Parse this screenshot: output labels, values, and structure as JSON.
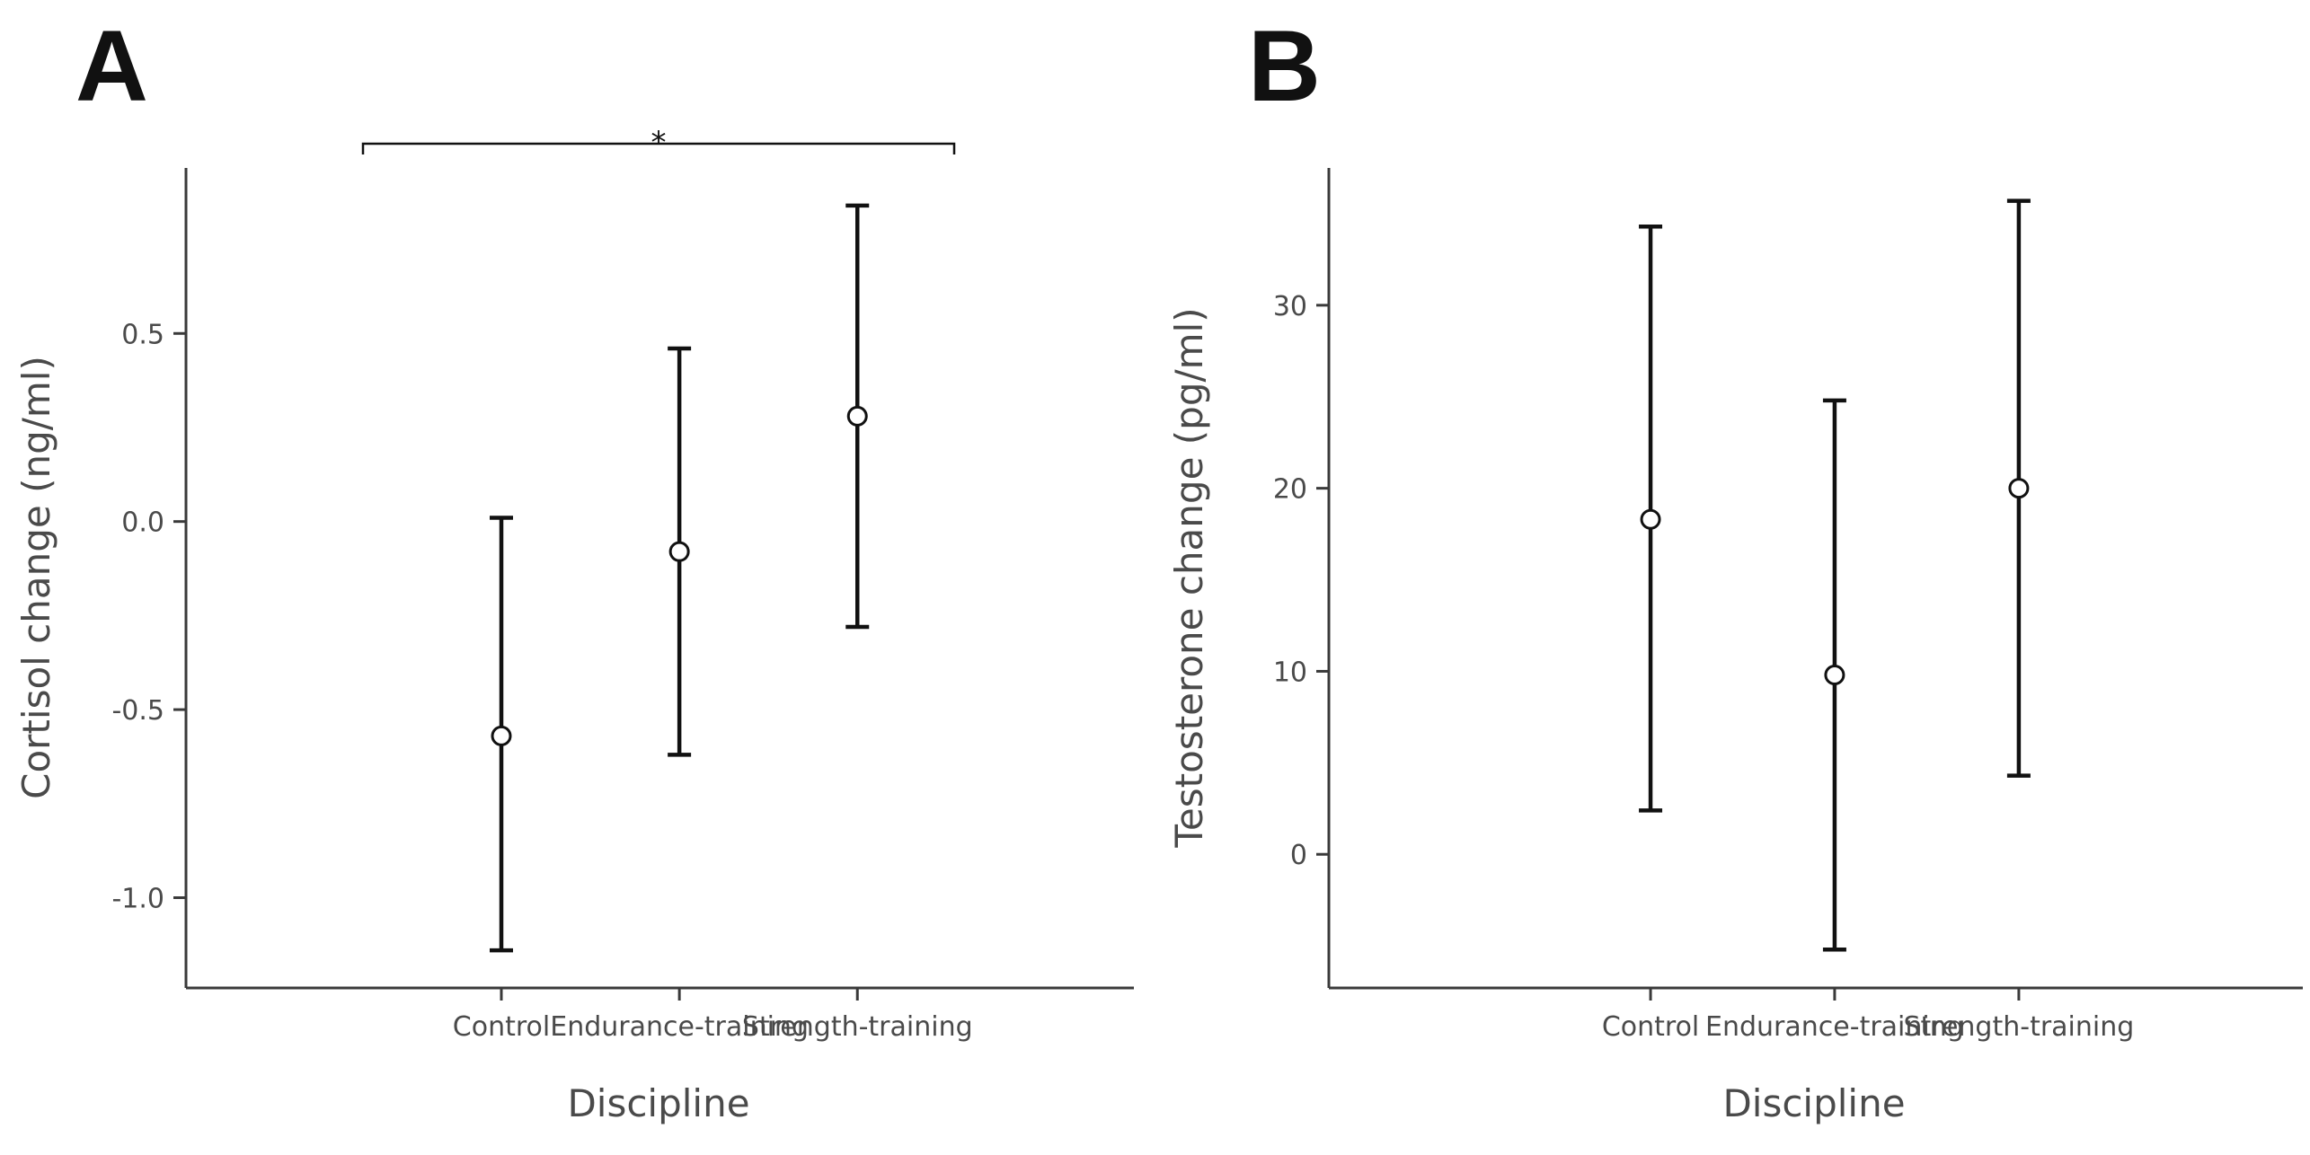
{
  "chart_data": [
    {
      "type": "errorbar",
      "panel": "A",
      "xlabel": "Discipline",
      "ylabel": "Cortisol change (ng/ml)",
      "categories": [
        "Control",
        "Endurance-training",
        "Strength-training"
      ],
      "values": [
        -0.57,
        -0.08,
        0.28
      ],
      "lower": [
        -1.14,
        -0.62,
        -0.28
      ],
      "upper": [
        0.01,
        0.46,
        0.84
      ],
      "yticks": [
        -1.0,
        -0.5,
        0.0,
        0.5
      ],
      "ytick_labels": [
        "-1.0",
        "-0.5",
        "0.0",
        "0.5"
      ],
      "ylim": [
        -1.24,
        0.94
      ],
      "significance": {
        "from": "Control",
        "to": "Strength-training",
        "label": "*"
      }
    },
    {
      "type": "errorbar",
      "panel": "B",
      "xlabel": "Discipline",
      "ylabel": "Testosterone change (pg/ml)",
      "categories": [
        "Control",
        "Endurance-training",
        "Strength-training"
      ],
      "values": [
        18.3,
        9.8,
        20.0
      ],
      "lower": [
        2.4,
        -5.2,
        4.3
      ],
      "upper": [
        34.3,
        24.8,
        35.7
      ],
      "yticks": [
        0,
        10,
        20,
        30
      ],
      "ytick_labels": [
        "0",
        "10",
        "20",
        "30"
      ],
      "ylim": [
        -7.3,
        37.5
      ]
    }
  ]
}
